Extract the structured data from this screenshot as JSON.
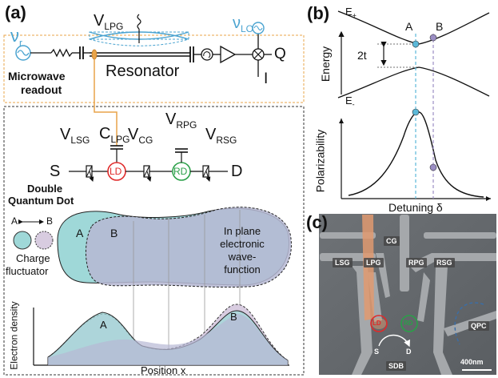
{
  "panels": {
    "a": "(a)",
    "b": "(b)",
    "c": "(c)"
  },
  "panel_a": {
    "nu_r": "ν",
    "nu_r_sub": "r",
    "nu_lo": "ν",
    "nu_lo_sub": "LO",
    "v_lpg_top": "V",
    "v_lpg_top_sub": "LPG",
    "resonator": "Resonator",
    "q": "Q",
    "i": "I",
    "microwave_readout_1": "Microwave",
    "microwave_readout_2": "readout",
    "v_lsg": "V",
    "v_lsg_sub": "LSG",
    "c_lpg": "C",
    "c_lpg_sub": "LPG",
    "v_cg": "V",
    "v_cg_sub": "CG",
    "v_rpg": "V",
    "v_rpg_sub": "RPG",
    "v_rsg": "V",
    "v_rsg_sub": "RSG",
    "s": "S",
    "d": "D",
    "ld": "LD",
    "rd": "RD",
    "dqd_1": "Double",
    "dqd_2": "Quantum Dot",
    "a_b_arrow_a": "A",
    "a_b_arrow_b": "B",
    "charge_fluctuator_1": "Charge",
    "charge_fluctuator_2": "fluctuator",
    "wave_a": "A",
    "wave_b": "B",
    "wave_text": [
      "In plane",
      "electronic",
      "wave-",
      "function"
    ],
    "density_a": "A",
    "density_b": "B",
    "ylabel": "Electron density",
    "xlabel": "Position x"
  },
  "panel_b": {
    "e_plus": "E",
    "e_plus_sub": "+",
    "e_minus": "E",
    "e_minus_sub": "-",
    "marker_a": "A",
    "marker_b": "B",
    "gap": "2t",
    "energy_label": "Energy",
    "polarizability_label": "Polarizability",
    "detuning_label": "Detuning δ",
    "colors": {
      "a": "#5bb8d8",
      "b": "#9b8ec4"
    }
  },
  "panel_c": {
    "labels": {
      "cg": "CG",
      "lsg": "LSG",
      "lpg": "LPG",
      "rpg": "RPG",
      "rsg": "RSG",
      "ld": "LD",
      "rd": "RD",
      "s": "S",
      "d": "D",
      "sdb": "SDB",
      "qpc": "QPC",
      "scale": "400nm"
    }
  }
}
